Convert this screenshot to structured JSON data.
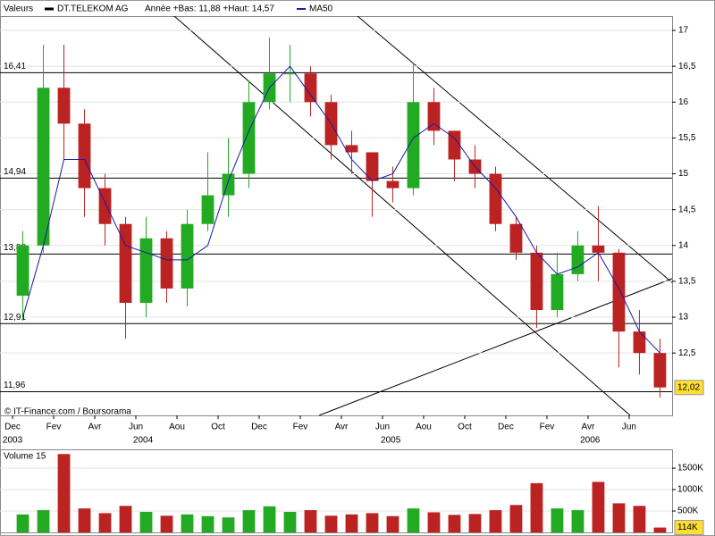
{
  "header": {
    "label": "Valeurs",
    "name": "DT.TELEKOM AG",
    "range": "Année +Bas: 11,88 +Haut: 14,57"
  },
  "source": "© IT-Finance.com / Boursorama",
  "chart_data": [
    {
      "type": "candlestick",
      "x": [
        0.5,
        1.5,
        2.5,
        3.5,
        4.5,
        5.5,
        6.5,
        7.5,
        8.5,
        9.5,
        10.5,
        11.5,
        12.5,
        13.5,
        14.5,
        15.5,
        16.5,
        17.5,
        18.5,
        19.5,
        20.5,
        21.5,
        22.5,
        23.5,
        24.5,
        25.5,
        26.5,
        27.5,
        28.5,
        29.5,
        30.5,
        31.5
      ],
      "open": [
        13.3,
        14.0,
        16.2,
        15.7,
        14.8,
        14.3,
        13.2,
        14.1,
        13.4,
        14.3,
        14.7,
        15.0,
        16.0,
        16.4,
        16.4,
        16.0,
        15.4,
        15.3,
        14.9,
        14.8,
        16.0,
        15.6,
        15.2,
        15.0,
        14.3,
        13.9,
        13.1,
        13.6,
        14.0,
        13.9,
        12.8,
        12.5
      ],
      "high": [
        14.2,
        16.8,
        16.8,
        15.9,
        15.0,
        14.4,
        14.4,
        14.2,
        14.5,
        15.3,
        15.5,
        16.3,
        16.9,
        16.8,
        16.5,
        16.1,
        15.6,
        15.3,
        15.1,
        16.55,
        16.2,
        15.6,
        15.4,
        15.1,
        14.4,
        14.0,
        13.9,
        14.2,
        14.55,
        13.95,
        13.1,
        12.7
      ],
      "low": [
        12.95,
        13.9,
        15.2,
        14.4,
        14.0,
        12.7,
        13.0,
        13.2,
        13.15,
        14.2,
        14.4,
        14.8,
        15.9,
        16.0,
        15.8,
        15.2,
        15.0,
        14.4,
        14.6,
        14.7,
        15.4,
        14.9,
        14.8,
        14.2,
        13.8,
        12.85,
        13.0,
        13.5,
        13.5,
        12.3,
        12.2,
        11.88
      ],
      "close": [
        14.0,
        16.2,
        15.7,
        14.8,
        14.3,
        13.2,
        14.1,
        13.4,
        14.3,
        14.7,
        15.0,
        16.0,
        16.4,
        16.4,
        16.0,
        15.4,
        15.3,
        14.9,
        14.8,
        16.0,
        15.6,
        15.2,
        15.0,
        14.3,
        13.9,
        13.1,
        13.6,
        14.0,
        13.9,
        12.8,
        12.5,
        12.02
      ],
      "name": "DT.TELEKOM AG",
      "up_color": "#22aa22",
      "down_color": "#bb2222",
      "series": [
        {
          "name": "MA50",
          "color": "#1a1aaa",
          "values": [
            13.0,
            14.0,
            15.2,
            15.2,
            14.6,
            14.0,
            13.9,
            13.8,
            13.8,
            14.0,
            14.9,
            15.6,
            16.2,
            16.5,
            16.1,
            15.7,
            15.2,
            14.9,
            15.0,
            15.5,
            15.7,
            15.5,
            15.1,
            14.8,
            14.4,
            13.9,
            13.6,
            13.7,
            13.9,
            13.4,
            12.8,
            12.5
          ]
        }
      ],
      "xlim": [
        -0.61,
        32.09
      ],
      "xticks": [
        {
          "value": 0,
          "label": "Dec"
        },
        {
          "value": 2,
          "label": "Fev"
        },
        {
          "value": 4,
          "label": "Avr"
        },
        {
          "value": 6,
          "label": "Jun"
        },
        {
          "value": 8,
          "label": "Aou"
        },
        {
          "value": 10,
          "label": "Oct"
        },
        {
          "value": 12,
          "label": "Dec"
        },
        {
          "value": 14,
          "label": "Fev"
        },
        {
          "value": 16,
          "label": "Avr"
        },
        {
          "value": 18,
          "label": "Jun"
        },
        {
          "value": 20,
          "label": "Aou"
        },
        {
          "value": 22,
          "label": "Oct"
        },
        {
          "value": 24,
          "label": "Dec"
        },
        {
          "value": 26,
          "label": "Fev"
        },
        {
          "value": 28,
          "label": "Avr"
        },
        {
          "value": 30,
          "label": "Jun"
        }
      ],
      "year_labels": [
        {
          "value": 0,
          "label": "2003"
        },
        {
          "value": 6.35,
          "label": "2004"
        },
        {
          "value": 18.4,
          "label": "2005"
        },
        {
          "value": 28.1,
          "label": "2006"
        }
      ],
      "ylim": [
        11.63,
        17.2
      ],
      "yticks": [
        {
          "value": 12.5,
          "label": "12,5"
        },
        13,
        {
          "value": 13.5,
          "label": "13,5"
        },
        14,
        {
          "value": 14.5,
          "label": "14,5"
        },
        15,
        {
          "value": 15.5,
          "label": "15,5"
        },
        16,
        {
          "value": 16.5,
          "label": "16,5"
        },
        17
      ],
      "levels": [
        {
          "value": 16.41,
          "label": "16,41"
        },
        {
          "value": 14.94,
          "label": "14,94"
        },
        {
          "value": 13.88,
          "label": "13,88"
        },
        {
          "value": 12.91,
          "label": "12,91"
        },
        {
          "value": 11.96,
          "label": "11,96"
        }
      ],
      "last_label": {
        "value": 12.02,
        "label": "12,02"
      },
      "grid": true
    },
    {
      "type": "bar",
      "title": "Volume 15",
      "x": [
        0.5,
        1.5,
        2.5,
        3.5,
        4.5,
        5.5,
        6.5,
        7.5,
        8.5,
        9.5,
        10.5,
        11.5,
        12.5,
        13.5,
        14.5,
        15.5,
        16.5,
        17.5,
        18.5,
        19.5,
        20.5,
        21.5,
        22.5,
        23.5,
        24.5,
        25.5,
        26.5,
        27.5,
        28.5,
        29.5,
        30.5,
        31.5
      ],
      "values": [
        420000,
        520000,
        1830000,
        560000,
        450000,
        620000,
        480000,
        390000,
        420000,
        380000,
        350000,
        520000,
        610000,
        480000,
        520000,
        390000,
        420000,
        450000,
        380000,
        560000,
        470000,
        410000,
        430000,
        520000,
        640000,
        1150000,
        560000,
        520000,
        1180000,
        680000,
        620000,
        114000
      ],
      "xlim": [
        -0.61,
        32.09
      ],
      "ylim": [
        0,
        1940000
      ],
      "yticks": [
        {
          "value": 500000,
          "label": "500K"
        },
        {
          "value": 1000000,
          "label": "1000K"
        },
        {
          "value": 1500000,
          "label": "1500K"
        }
      ],
      "last_label": {
        "value": 114000,
        "label": "114K"
      }
    }
  ]
}
